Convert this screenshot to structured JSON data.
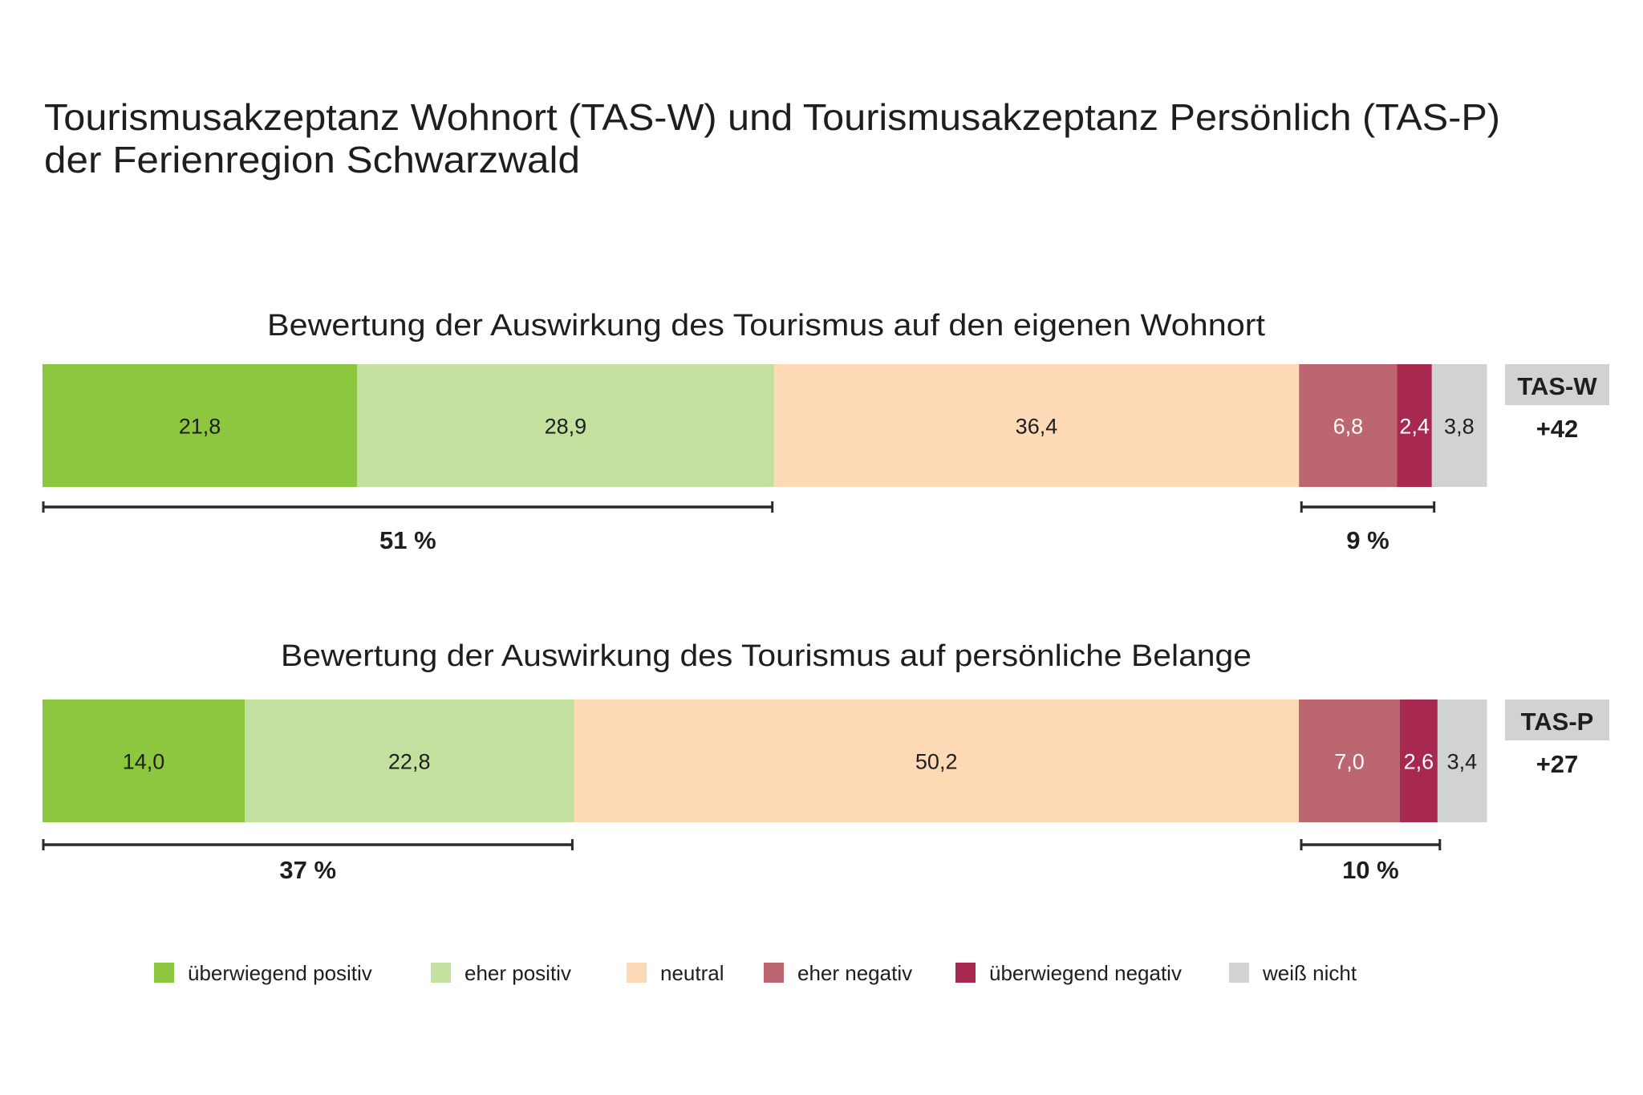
{
  "title_line1": "Tourismusakzeptanz Wohnort (TAS-W) und Tourismusakzeptanz Persönlich (TAS-P)",
  "title_line2": "der Ferienregion Schwarzwald",
  "chart_data": {
    "type": "bar",
    "orientation": "horizontal-stacked-100",
    "title": "Tourismusakzeptanz Wohnort (TAS-W) und Tourismusakzeptanz Persönlich (TAS-P) der Ferienregion Schwarzwald",
    "categories": [
      "überwiegend positiv",
      "eher positiv",
      "neutral",
      "eher negativ",
      "überwiegend negativ",
      "weiß nicht"
    ],
    "colors": [
      "#8dc63f",
      "#c4e09e",
      "#fdd9b5",
      "#bc6672",
      "#a8294f",
      "#d1d2d4"
    ],
    "label_colors": [
      "#1e1e1e",
      "#1e1e1e",
      "#1e1e1e",
      "#ffffff",
      "#ffffff",
      "#1e1e1e"
    ],
    "unit": "%",
    "legend_position": "bottom",
    "bars": [
      {
        "subtitle": "Bewertung der Auswirkung des Tourismus auf den eigenen Wohnort",
        "values": [
          21.8,
          28.9,
          36.4,
          6.8,
          2.4,
          3.8
        ],
        "value_labels": [
          "21,8",
          "28,9",
          "36,4",
          "6,8",
          "2,4",
          "3,8"
        ],
        "positive_sum_label": "51 %",
        "negative_sum_label": "9 %",
        "index_label": "TAS-W",
        "index_value": "+42"
      },
      {
        "subtitle": "Bewertung der Auswirkung des Tourismus auf persönliche Belange",
        "values": [
          14.0,
          22.8,
          50.2,
          7.0,
          2.6,
          3.4
        ],
        "value_labels": [
          "14,0",
          "22,8",
          "50,2",
          "7,0",
          "2,6",
          "3,4"
        ],
        "positive_sum_label": "37 %",
        "negative_sum_label": "10 %",
        "index_label": "TAS-P",
        "index_value": "+27"
      }
    ]
  },
  "colors": {
    "text": "#1e1e1e",
    "index_box": "#d1d2d4",
    "bracket": "#2a2a2a"
  }
}
